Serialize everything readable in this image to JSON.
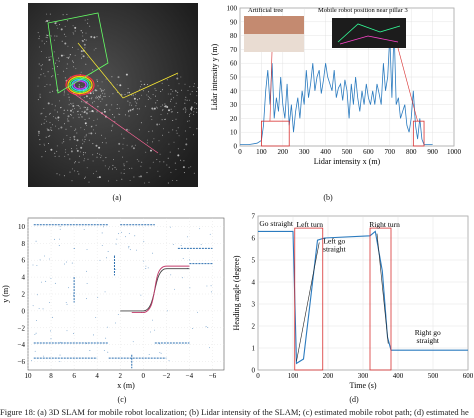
{
  "panel_a": {
    "label": "(a)",
    "image": "3d-point-cloud-slam-map"
  },
  "panel_b": {
    "label": "(b)",
    "chart_data": {
      "type": "line",
      "xlabel": "Lidar intensity x (m)",
      "ylabel": "Lidar intensity y (m)",
      "xlim": [
        0,
        1000
      ],
      "ylim": [
        0,
        100
      ],
      "xticks": [
        "0",
        "100",
        "200",
        "300",
        "400",
        "500",
        "600",
        "700",
        "800",
        "900",
        "1000"
      ],
      "yticks": [
        "0",
        "10",
        "20",
        "30",
        "40",
        "50",
        "60",
        "70",
        "80",
        "90",
        "100"
      ],
      "inset_labels": [
        "Artificial tree",
        "Mobile robot position near pillar 3"
      ],
      "series": [
        {
          "x": [
            0,
            40,
            80,
            100,
            110,
            120,
            130,
            140,
            150,
            160,
            170,
            180,
            190,
            200,
            210,
            220,
            230,
            240,
            250,
            260,
            270,
            280,
            290,
            300,
            310,
            320,
            330,
            340,
            350,
            360,
            370,
            380,
            390,
            400,
            410,
            420,
            430,
            440,
            450,
            460,
            470,
            480,
            490,
            500,
            510,
            520,
            530,
            540,
            550,
            560,
            570,
            580,
            590,
            600,
            610,
            620,
            630,
            640,
            650,
            660,
            670,
            680,
            690,
            700,
            710,
            720,
            730,
            740,
            750,
            760,
            770,
            780,
            790,
            800,
            810,
            820,
            830,
            840,
            850,
            860,
            870,
            880,
            890,
            900
          ],
          "y": [
            1,
            1,
            2,
            4,
            15,
            40,
            55,
            30,
            60,
            20,
            35,
            25,
            50,
            30,
            20,
            45,
            15,
            30,
            10,
            25,
            35,
            20,
            40,
            30,
            55,
            35,
            45,
            60,
            40,
            50,
            55,
            38,
            48,
            60,
            50,
            45,
            40,
            55,
            35,
            42,
            45,
            33,
            48,
            40,
            20,
            45,
            30,
            50,
            35,
            25,
            40,
            30,
            45,
            35,
            30,
            40,
            30,
            45,
            38,
            30,
            60,
            40,
            50,
            80,
            35,
            85,
            30,
            35,
            20,
            25,
            30,
            15,
            10,
            20,
            40,
            15,
            5,
            20,
            5,
            1,
            1,
            1,
            1,
            1
          ]
        }
      ]
    }
  },
  "panel_c": {
    "label": "(c)",
    "chart_data": {
      "type": "scatter",
      "xlabel": "x (m)",
      "ylabel": "y (m)",
      "xlim": [
        10,
        -7
      ],
      "ylim": [
        -7,
        11
      ],
      "xticks": [
        "10",
        "8",
        "6",
        "4",
        "2",
        "0",
        "−2",
        "−4",
        "−6"
      ],
      "yticks": [
        "10",
        "8",
        "6",
        "4",
        "2",
        "0",
        "−2",
        "−4",
        "−6"
      ]
    }
  },
  "panel_d": {
    "label": "(d)",
    "chart_data": {
      "type": "line",
      "xlabel": "Time (s)",
      "ylabel": "Heading angle (degree)",
      "xlim": [
        0,
        600
      ],
      "ylim": [
        0,
        7
      ],
      "xticks": [
        "0",
        "100",
        "200",
        "300",
        "400",
        "500",
        "600"
      ],
      "yticks": [
        "0",
        "1",
        "2",
        "3",
        "4",
        "5",
        "6",
        "7"
      ],
      "annotations": [
        "Go straight",
        "Left turn",
        "Left go straight",
        "Right turn",
        "Right go straight"
      ],
      "series": [
        {
          "x": [
            0,
            100,
            110,
            130,
            170,
            190,
            320,
            335,
            355,
            370,
            380,
            600
          ],
          "y": [
            6.3,
            6.3,
            0.3,
            0.5,
            5.9,
            6.0,
            6.1,
            6.3,
            4.5,
            1.5,
            0.9,
            0.9
          ]
        }
      ]
    }
  },
  "caption": "Figure 18: (a) 3D SLAM for mobile robot localization; (b) Lidar intensity of the SLAM; (c) estimated mobile robot path; (d) estimated he"
}
